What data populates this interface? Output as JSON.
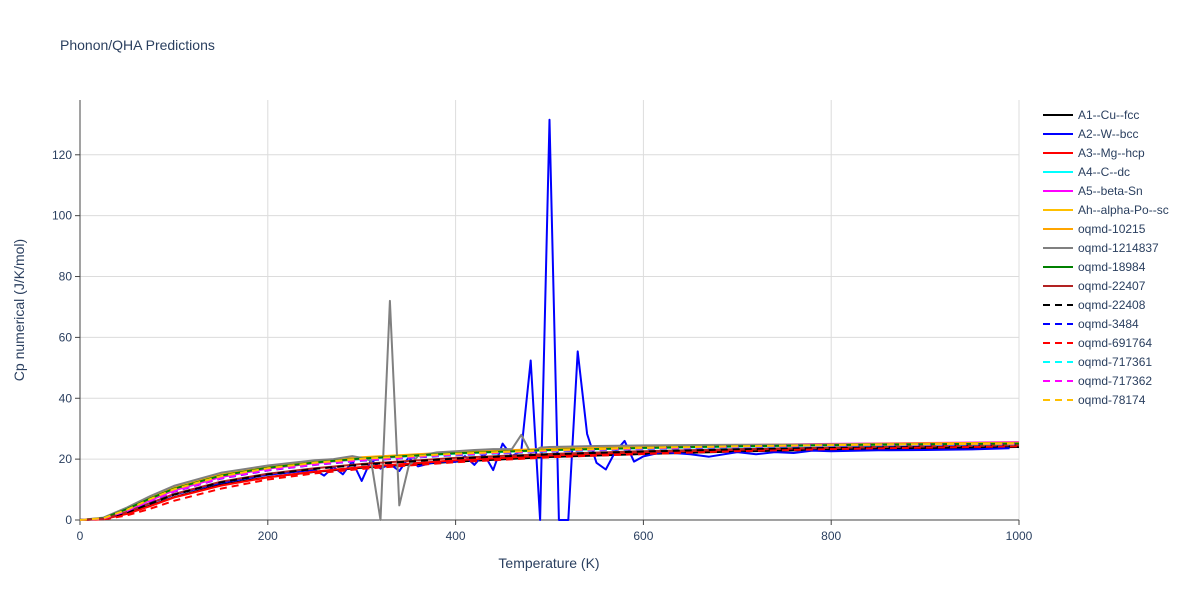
{
  "chart_data": {
    "type": "line",
    "title": "Phonon/QHA Predictions",
    "xlabel": "Temperature (K)",
    "ylabel": "Cp numerical (J/K/mol)",
    "xlim": [
      0,
      1000
    ],
    "ylim": [
      0,
      138
    ],
    "x_ticks": [
      0,
      200,
      400,
      600,
      800,
      1000
    ],
    "y_ticks": [
      0,
      20,
      40,
      60,
      80,
      100,
      120
    ],
    "grid": true,
    "legend_position": "right",
    "series": [
      {
        "name": "A1--Cu--fcc",
        "color": "#000000",
        "dash": "solid",
        "x": [
          0,
          25,
          50,
          75,
          100,
          150,
          200,
          250,
          300,
          400,
          500,
          600,
          700,
          800,
          900,
          1000
        ],
        "y": [
          0,
          0.3,
          2.2,
          4.8,
          7.5,
          11.6,
          14.1,
          15.8,
          17.2,
          19.2,
          20.7,
          21.7,
          22.5,
          23.1,
          23.6,
          24.0
        ]
      },
      {
        "name": "A2--W--bcc",
        "color": "#0000ff",
        "dash": "solid",
        "x": [
          0,
          25,
          50,
          75,
          100,
          150,
          200,
          250,
          260,
          270,
          280,
          290,
          300,
          310,
          320,
          330,
          340,
          350,
          360,
          380,
          400,
          410,
          420,
          430,
          440,
          450,
          460,
          470,
          480,
          490,
          500,
          510,
          520,
          530,
          540,
          550,
          560,
          570,
          580,
          590,
          600,
          620,
          650,
          670,
          700,
          720,
          740,
          760,
          780,
          800,
          850,
          900,
          950,
          990
        ],
        "y": [
          0,
          0.4,
          2.8,
          5.6,
          8.3,
          12.2,
          14.9,
          16.5,
          14.6,
          17.4,
          15.0,
          19.3,
          12.8,
          19.8,
          16.9,
          18.4,
          16.1,
          20.5,
          17.6,
          19.2,
          19.1,
          21.0,
          18.1,
          21.8,
          16.4,
          25.1,
          21.0,
          22.7,
          52.4,
          0,
          131.5,
          0,
          0,
          55.4,
          28.3,
          18.8,
          16.6,
          22.4,
          26.0,
          19.2,
          20.9,
          22.3,
          21.6,
          20.8,
          22.3,
          21.6,
          22.3,
          22.0,
          22.8,
          22.6,
          22.9,
          23.0,
          23.2,
          23.6
        ]
      },
      {
        "name": "A3--Mg--hcp",
        "color": "#ff0000",
        "dash": "solid",
        "x": [
          0,
          25,
          50,
          75,
          100,
          150,
          200,
          250,
          300,
          400,
          500,
          600,
          700,
          800,
          900,
          1000
        ],
        "y": [
          0,
          0.3,
          2.0,
          4.6,
          7.4,
          11.3,
          14.0,
          15.9,
          17.4,
          19.6,
          21.2,
          22.3,
          23.1,
          23.7,
          24.2,
          24.5
        ]
      },
      {
        "name": "A4--C--dc",
        "color": "#00ffff",
        "dash": "solid",
        "x": [
          0,
          25,
          50,
          75,
          100,
          150,
          200,
          250,
          300,
          400,
          500,
          600,
          700,
          800,
          900,
          1000
        ],
        "y": [
          0,
          0.5,
          3.3,
          6.7,
          9.9,
          14.3,
          17.0,
          18.7,
          20.0,
          21.8,
          22.9,
          23.6,
          24.1,
          24.5,
          24.8,
          25.0
        ]
      },
      {
        "name": "A5--beta-Sn",
        "color": "#ff00ff",
        "dash": "solid",
        "x": [
          0,
          25,
          50,
          75,
          100,
          150,
          200,
          250,
          300,
          400,
          500,
          600,
          700,
          800,
          900,
          1000
        ],
        "y": [
          0,
          0.5,
          3.2,
          6.5,
          9.7,
          14.1,
          16.9,
          18.7,
          20.1,
          22.0,
          23.2,
          24.0,
          24.6,
          25.0,
          25.3,
          25.6
        ]
      },
      {
        "name": "Ah--alpha-Po--sc",
        "color": "#ffc000",
        "dash": "solid",
        "x": [
          0,
          25,
          50,
          75,
          100,
          150,
          200,
          250,
          300,
          400,
          500,
          600,
          700,
          800,
          900,
          1000
        ],
        "y": [
          0,
          0.6,
          3.5,
          7.0,
          10.2,
          14.6,
          17.2,
          19.0,
          20.3,
          22.0,
          23.1,
          23.8,
          24.3,
          24.6,
          24.9,
          25.1
        ]
      },
      {
        "name": "oqmd-10215",
        "color": "#ffa500",
        "dash": "solid",
        "x": [
          0,
          25,
          50,
          75,
          100,
          150,
          200,
          250,
          300,
          400,
          500,
          600,
          700,
          800,
          900,
          1000
        ],
        "y": [
          0,
          0.7,
          3.9,
          7.6,
          10.9,
          15.2,
          17.7,
          19.4,
          20.6,
          22.3,
          23.4,
          24.1,
          24.6,
          24.9,
          25.2,
          25.4
        ]
      },
      {
        "name": "oqmd-1214837",
        "color": "#808080",
        "dash": "solid",
        "x": [
          0,
          25,
          50,
          75,
          100,
          150,
          200,
          250,
          270,
          290,
          300,
          310,
          320,
          330,
          340,
          350,
          360,
          380,
          400,
          420,
          440,
          460,
          470,
          480,
          490,
          500,
          550,
          600,
          700,
          800,
          900,
          1000
        ],
        "y": [
          0,
          0.8,
          4.1,
          7.9,
          11.2,
          15.5,
          17.9,
          19.6,
          20.0,
          21.0,
          20.4,
          19.5,
          0,
          72.0,
          4.8,
          17.6,
          21.0,
          22.2,
          22.6,
          23.0,
          23.3,
          23.3,
          28.0,
          22.0,
          23.8,
          24.0,
          24.3,
          24.5,
          24.7,
          24.8,
          24.9,
          25.0
        ]
      },
      {
        "name": "oqmd-18984",
        "color": "#008000",
        "dash": "solid",
        "x": [
          0,
          25,
          50,
          75,
          100,
          150,
          200,
          250,
          300,
          400,
          500,
          600,
          700,
          800,
          900,
          1000
        ],
        "y": [
          0,
          0.6,
          3.6,
          7.1,
          10.3,
          14.6,
          17.2,
          18.9,
          20.2,
          21.9,
          23.0,
          23.7,
          24.2,
          24.6,
          24.9,
          25.1
        ]
      },
      {
        "name": "oqmd-22407",
        "color": "#b22222",
        "dash": "solid",
        "x": [
          0,
          25,
          50,
          75,
          100,
          150,
          200,
          250,
          300,
          400,
          500,
          600,
          700,
          800,
          900,
          1000
        ],
        "y": [
          0,
          0.4,
          2.6,
          5.6,
          8.5,
          12.6,
          15.2,
          17.0,
          18.4,
          20.4,
          21.7,
          22.6,
          23.3,
          23.8,
          24.2,
          24.5
        ]
      },
      {
        "name": "oqmd-22408",
        "color": "#000000",
        "dash": "dash",
        "x": [
          0,
          25,
          50,
          75,
          100,
          150,
          200,
          250,
          300,
          400,
          500,
          600,
          700,
          800,
          900,
          1000
        ],
        "y": [
          0,
          0.4,
          2.5,
          5.4,
          8.3,
          12.4,
          15.0,
          16.8,
          18.2,
          20.2,
          21.6,
          22.5,
          23.2,
          23.7,
          24.1,
          24.4
        ]
      },
      {
        "name": "oqmd-3484",
        "color": "#0000ff",
        "dash": "dash",
        "x": [
          0,
          25,
          50,
          75,
          100,
          150,
          200,
          250,
          300,
          400,
          500,
          600,
          700,
          800,
          900,
          1000
        ],
        "y": [
          0,
          0.5,
          3.0,
          6.2,
          9.3,
          13.6,
          16.3,
          18.1,
          19.5,
          21.3,
          22.5,
          23.3,
          23.9,
          24.3,
          24.6,
          24.9
        ]
      },
      {
        "name": "oqmd-691764",
        "color": "#ff0000",
        "dash": "dash",
        "x": [
          0,
          25,
          50,
          75,
          100,
          150,
          200,
          250,
          300,
          400,
          500,
          600,
          700,
          800,
          900,
          1000
        ],
        "y": [
          0,
          0.2,
          1.5,
          3.7,
          6.3,
          10.3,
          13.3,
          15.3,
          16.8,
          19.0,
          20.6,
          21.7,
          22.6,
          23.3,
          23.8,
          24.2
        ]
      },
      {
        "name": "oqmd-717361",
        "color": "#00ffff",
        "dash": "dash",
        "x": [
          0,
          25,
          50,
          75,
          100,
          150,
          200,
          250,
          300,
          400,
          500,
          600,
          700,
          800,
          900,
          1000
        ],
        "y": [
          0,
          0.5,
          3.1,
          6.4,
          9.5,
          13.8,
          16.5,
          18.2,
          19.6,
          21.4,
          22.6,
          23.4,
          24.0,
          24.4,
          24.7,
          24.9
        ]
      },
      {
        "name": "oqmd-717362",
        "color": "#ff00ff",
        "dash": "dash",
        "x": [
          0,
          25,
          50,
          75,
          100,
          150,
          200,
          250,
          300,
          400,
          500,
          600,
          700,
          800,
          900,
          1000
        ],
        "y": [
          0,
          0.5,
          3.0,
          6.3,
          9.4,
          13.7,
          16.4,
          18.2,
          19.6,
          21.5,
          22.7,
          23.5,
          24.1,
          24.5,
          24.8,
          25.0
        ]
      },
      {
        "name": "oqmd-78174",
        "color": "#ffc000",
        "dash": "dash",
        "x": [
          0,
          25,
          50,
          75,
          100,
          150,
          200,
          250,
          300,
          400,
          500,
          600,
          700,
          800,
          900,
          1000
        ],
        "y": [
          0,
          0.6,
          3.4,
          6.9,
          10.1,
          14.4,
          17.0,
          18.8,
          20.1,
          21.8,
          22.9,
          23.7,
          24.2,
          24.6,
          24.9,
          25.1
        ]
      }
    ]
  }
}
